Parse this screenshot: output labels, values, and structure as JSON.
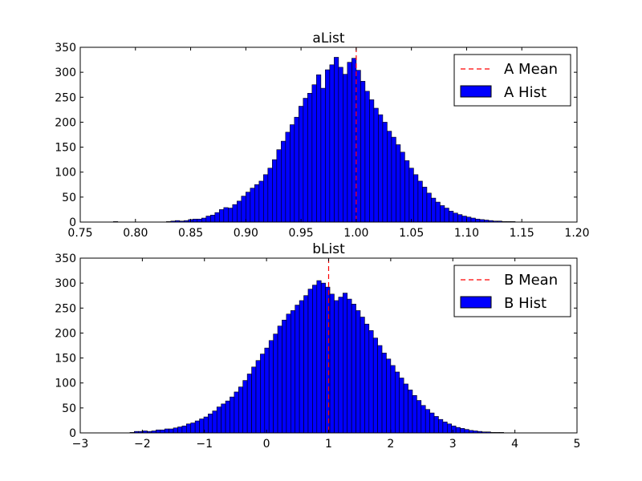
{
  "chart_data": [
    {
      "type": "bar",
      "subtype": "histogram",
      "title": "aList",
      "xlabel": "",
      "ylabel": "",
      "xlim": [
        0.75,
        1.2
      ],
      "ylim": [
        0,
        350
      ],
      "xticks": [
        0.75,
        0.8,
        0.85,
        0.9,
        0.95,
        1.0,
        1.05,
        1.1,
        1.15,
        1.2
      ],
      "xtick_labels": [
        "0.75",
        "0.80",
        "0.85",
        "0.90",
        "0.95",
        "1.00",
        "1.05",
        "1.10",
        "1.15",
        "1.20"
      ],
      "yticks": [
        0,
        50,
        100,
        150,
        200,
        250,
        300,
        350
      ],
      "ytick_labels": [
        "0",
        "50",
        "100",
        "150",
        "200",
        "250",
        "300",
        "350"
      ],
      "bin_start": 0.78,
      "bin_width": 0.004,
      "values": [
        1,
        0,
        0,
        0,
        0,
        0,
        0,
        0,
        0,
        0,
        0,
        0,
        1,
        2,
        3,
        2,
        3,
        5,
        6,
        6,
        8,
        12,
        14,
        19,
        25,
        29,
        28,
        35,
        42,
        52,
        60,
        68,
        75,
        82,
        95,
        108,
        125,
        145,
        162,
        180,
        195,
        210,
        232,
        248,
        258,
        275,
        295,
        268,
        305,
        315,
        330,
        310,
        296,
        320,
        328,
        304,
        282,
        262,
        245,
        228,
        215,
        200,
        182,
        170,
        155,
        140,
        123,
        108,
        95,
        82,
        70,
        58,
        48,
        40,
        33,
        28,
        22,
        18,
        15,
        12,
        10,
        8,
        6,
        5,
        4,
        3,
        2,
        2,
        1,
        1,
        1,
        0,
        0,
        0,
        0,
        0,
        0,
        0,
        0,
        0
      ],
      "mean": 1.0,
      "legend": {
        "position": "top-right",
        "entries": [
          {
            "label": "A Mean",
            "kind": "line",
            "color": "#ff0000",
            "style": "dashed"
          },
          {
            "label": "A Hist",
            "kind": "patch",
            "color": "#0000ff"
          }
        ]
      },
      "colors": {
        "bar": "#0000ff",
        "mean_line": "#ff0000"
      }
    },
    {
      "type": "bar",
      "subtype": "histogram",
      "title": "bList",
      "xlabel": "",
      "ylabel": "",
      "xlim": [
        -3,
        5
      ],
      "ylim": [
        0,
        350
      ],
      "xticks": [
        -3,
        -2,
        -1,
        0,
        1,
        2,
        3,
        4,
        5
      ],
      "xtick_labels": [
        "−3",
        "−2",
        "−1",
        "0",
        "1",
        "2",
        "3",
        "4",
        "5"
      ],
      "yticks": [
        0,
        50,
        100,
        150,
        200,
        250,
        300,
        350
      ],
      "ytick_labels": [
        "0",
        "50",
        "100",
        "150",
        "200",
        "250",
        "300",
        "350"
      ],
      "bin_start": -2.2,
      "bin_width": 0.07,
      "values": [
        1,
        3,
        3,
        4,
        3,
        4,
        6,
        6,
        8,
        8,
        10,
        12,
        14,
        18,
        20,
        24,
        28,
        32,
        38,
        44,
        52,
        58,
        64,
        72,
        82,
        92,
        105,
        118,
        132,
        145,
        158,
        170,
        185,
        198,
        214,
        226,
        238,
        245,
        256,
        265,
        275,
        288,
        296,
        305,
        300,
        292,
        278,
        265,
        272,
        280,
        268,
        258,
        245,
        232,
        218,
        205,
        190,
        175,
        160,
        148,
        135,
        122,
        110,
        98,
        86,
        75,
        65,
        55,
        47,
        40,
        33,
        27,
        22,
        18,
        14,
        11,
        9,
        7,
        5,
        4,
        3,
        2,
        2,
        1,
        1,
        1,
        0,
        0,
        0,
        0,
        0,
        0,
        0,
        0,
        0,
        0,
        0,
        0,
        0
      ],
      "mean": 1.0,
      "legend": {
        "position": "top-right",
        "entries": [
          {
            "label": "B Mean",
            "kind": "line",
            "color": "#ff0000",
            "style": "dashed"
          },
          {
            "label": "B Hist",
            "kind": "patch",
            "color": "#0000ff"
          }
        ]
      },
      "colors": {
        "bar": "#0000ff",
        "mean_line": "#ff0000"
      }
    }
  ]
}
